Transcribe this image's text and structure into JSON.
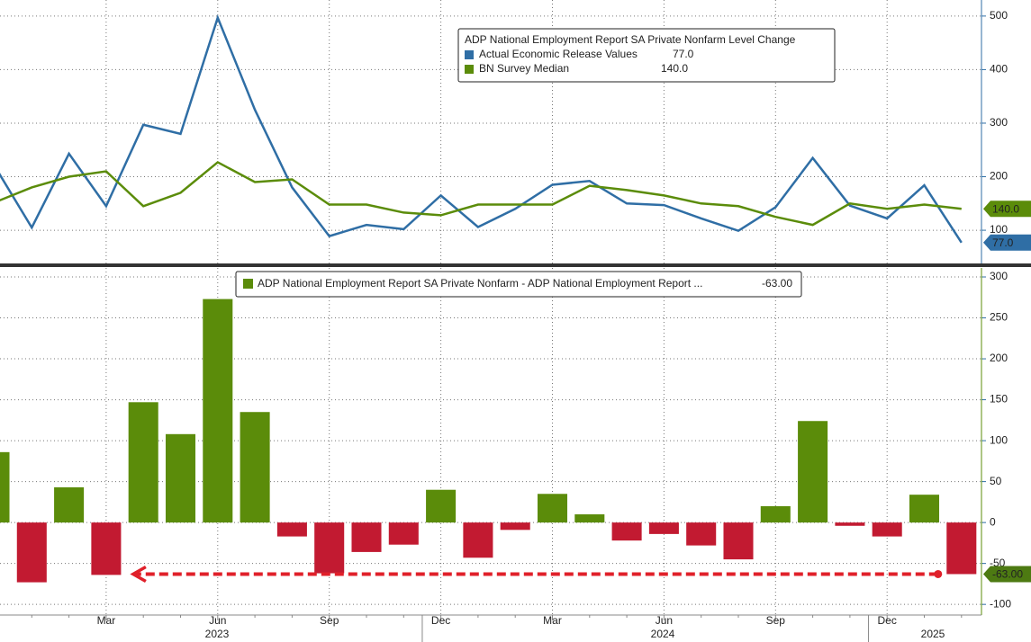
{
  "chart_data": [
    {
      "type": "line",
      "title": "ADP National Employment Report SA Private Nonfarm Level Change",
      "series": [
        {
          "name": "Actual Economic Release Values",
          "color": "#2f6ea5",
          "value_label": "77.0",
          "values": [
            220,
            105,
            243,
            145,
            297,
            280,
            497,
            325,
            180,
            89,
            110,
            102,
            165,
            106,
            140,
            185,
            192,
            150,
            147,
            122,
            99,
            143,
            235,
            146,
            122,
            184,
            77
          ]
        },
        {
          "name": "BN Survey Median",
          "color": "#5b8c0a",
          "value_label": "140.0",
          "values": [
            152,
            180,
            200,
            210,
            145,
            170,
            227,
            190,
            195,
            148,
            148,
            133,
            128,
            148,
            148,
            148,
            183,
            175,
            165,
            150,
            145,
            125,
            110,
            150,
            140,
            148,
            140
          ]
        }
      ],
      "ylim": [
        38,
        530
      ],
      "yticks": [
        100,
        200,
        300,
        400,
        500
      ],
      "grid": true
    },
    {
      "type": "bar",
      "title": "ADP National Employment Report SA Private Nonfarm - ADP National Employment Report ...",
      "value_label": "-63.00",
      "color": "#5b8c0a",
      "negative_color": "#c21a31",
      "categories": [
        null,
        null,
        null,
        "Mar",
        null,
        null,
        "Jun",
        null,
        null,
        "Sep",
        null,
        null,
        "Dec",
        null,
        null,
        "Mar",
        null,
        null,
        "Jun",
        null,
        null,
        "Sep",
        null,
        null,
        "Dec",
        null,
        null
      ],
      "year_labels": [
        "2023",
        "2024",
        "2025"
      ],
      "values": [
        86,
        -73,
        43,
        -64,
        147,
        108,
        273,
        135,
        -17,
        -62,
        -36,
        -27,
        40,
        -43,
        -9,
        35,
        10,
        -22,
        -14,
        -28,
        -45,
        20,
        124,
        -4,
        -17,
        34,
        -63
      ],
      "ylim": [
        -113,
        311
      ],
      "yticks": [
        -100,
        -50,
        0,
        50,
        100,
        150,
        200,
        250,
        300
      ],
      "grid": true
    }
  ]
}
